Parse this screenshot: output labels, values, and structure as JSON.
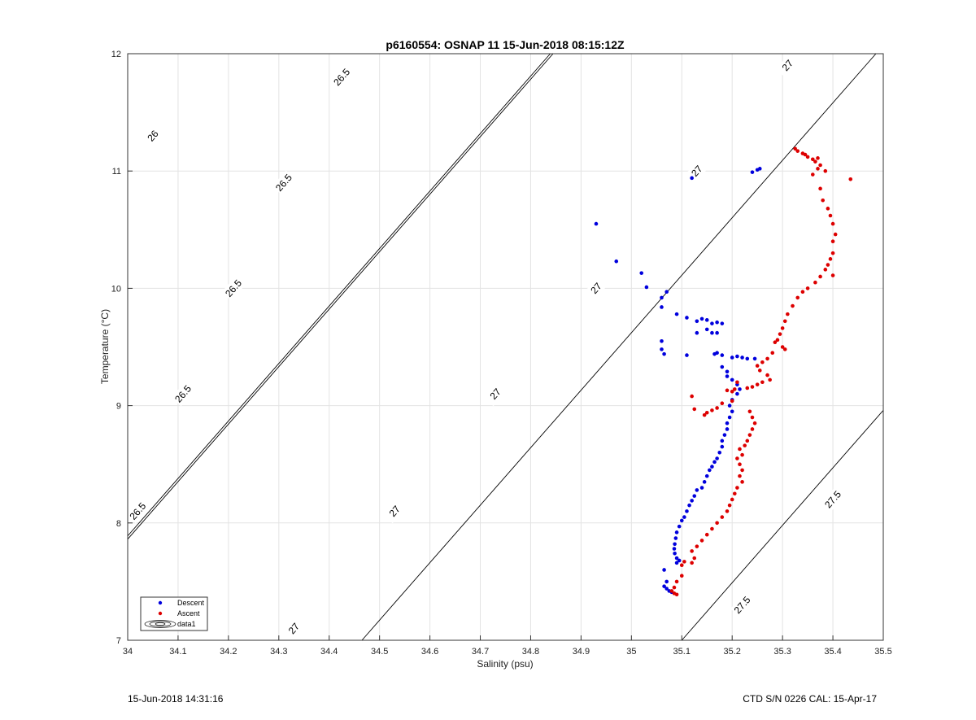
{
  "chart_data": {
    "type": "scatter",
    "title": "p6160554: OSNAP 11 15-Jun-2018 08:15:12Z",
    "xlabel": "Salinity (psu)",
    "ylabel": "Temperature (°C)",
    "xlim": [
      34,
      35.5
    ],
    "ylim": [
      7,
      12
    ],
    "x_ticks": [
      "34",
      "34.1",
      "34.2",
      "34.3",
      "34.4",
      "34.5",
      "34.6",
      "34.7",
      "34.8",
      "34.9",
      "35",
      "35.1",
      "35.2",
      "35.3",
      "35.4",
      "35.5"
    ],
    "y_ticks": [
      "7",
      "8",
      "9",
      "10",
      "11",
      "12"
    ],
    "grid": true,
    "legend_position": "bottom-left",
    "legend": [
      "Descent",
      "Ascent",
      "data1"
    ],
    "colors": {
      "descent": "#0000dd",
      "ascent": "#dd0000",
      "contour": "#000000"
    },
    "contours": [
      {
        "level": "26",
        "labels": [
          {
            "x": 34.05,
            "y": 11.3
          }
        ]
      },
      {
        "level": "26.5",
        "labels": [
          {
            "x": 34.425,
            "y": 11.8
          },
          {
            "x": 34.31,
            "y": 10.9
          },
          {
            "x": 34.21,
            "y": 10.0
          },
          {
            "x": 34.11,
            "y": 9.1
          },
          {
            "x": 34.02,
            "y": 8.1
          }
        ]
      },
      {
        "level": "27",
        "labels": [
          {
            "x": 35.31,
            "y": 11.9
          },
          {
            "x": 35.13,
            "y": 11.0
          },
          {
            "x": 34.93,
            "y": 10.0
          },
          {
            "x": 34.73,
            "y": 9.1
          },
          {
            "x": 34.53,
            "y": 8.1
          },
          {
            "x": 34.33,
            "y": 7.1
          }
        ]
      },
      {
        "level": "27.5",
        "labels": [
          {
            "x": 35.4,
            "y": 8.2
          },
          {
            "x": 35.22,
            "y": 7.3
          }
        ]
      }
    ],
    "series": [
      {
        "name": "Descent",
        "points": [
          [
            34.93,
            10.55
          ],
          [
            34.97,
            10.23
          ],
          [
            35.02,
            10.13
          ],
          [
            35.03,
            10.01
          ],
          [
            35.07,
            9.97
          ],
          [
            35.06,
            9.92
          ],
          [
            35.06,
            9.84
          ],
          [
            35.12,
            10.94
          ],
          [
            35.24,
            10.99
          ],
          [
            35.25,
            11.01
          ],
          [
            35.255,
            11.02
          ],
          [
            35.09,
            9.78
          ],
          [
            35.11,
            9.75
          ],
          [
            35.13,
            9.72
          ],
          [
            35.14,
            9.74
          ],
          [
            35.15,
            9.73
          ],
          [
            35.16,
            9.7
          ],
          [
            35.17,
            9.71
          ],
          [
            35.18,
            9.7
          ],
          [
            35.15,
            9.65
          ],
          [
            35.16,
            9.62
          ],
          [
            35.17,
            9.62
          ],
          [
            35.13,
            9.62
          ],
          [
            35.06,
            9.55
          ],
          [
            35.06,
            9.48
          ],
          [
            35.065,
            9.44
          ],
          [
            35.11,
            9.43
          ],
          [
            35.165,
            9.44
          ],
          [
            35.17,
            9.45
          ],
          [
            35.18,
            9.43
          ],
          [
            35.2,
            9.41
          ],
          [
            35.21,
            9.42
          ],
          [
            35.22,
            9.41
          ],
          [
            35.23,
            9.4
          ],
          [
            35.245,
            9.4
          ],
          [
            35.18,
            9.33
          ],
          [
            35.19,
            9.29
          ],
          [
            35.19,
            9.25
          ],
          [
            35.2,
            9.22
          ],
          [
            35.21,
            9.18
          ],
          [
            35.215,
            9.14
          ],
          [
            35.21,
            9.1
          ],
          [
            35.2,
            9.05
          ],
          [
            35.195,
            9.0
          ],
          [
            35.2,
            8.95
          ],
          [
            35.195,
            8.9
          ],
          [
            35.19,
            8.85
          ],
          [
            35.19,
            8.8
          ],
          [
            35.185,
            8.75
          ],
          [
            35.18,
            8.7
          ],
          [
            35.18,
            8.65
          ],
          [
            35.175,
            8.6
          ],
          [
            35.17,
            8.55
          ],
          [
            35.165,
            8.52
          ],
          [
            35.16,
            8.48
          ],
          [
            35.155,
            8.45
          ],
          [
            35.15,
            8.4
          ],
          [
            35.145,
            8.35
          ],
          [
            35.14,
            8.3
          ],
          [
            35.13,
            8.28
          ],
          [
            35.125,
            8.23
          ],
          [
            35.12,
            8.19
          ],
          [
            35.115,
            8.15
          ],
          [
            35.11,
            8.1
          ],
          [
            35.105,
            8.05
          ],
          [
            35.1,
            8.02
          ],
          [
            35.095,
            7.97
          ],
          [
            35.09,
            7.92
          ],
          [
            35.088,
            7.87
          ],
          [
            35.086,
            7.82
          ],
          [
            35.085,
            7.78
          ],
          [
            35.086,
            7.74
          ],
          [
            35.09,
            7.7
          ],
          [
            35.095,
            7.68
          ],
          [
            35.09,
            7.66
          ],
          [
            35.065,
            7.6
          ],
          [
            35.07,
            7.5
          ],
          [
            35.065,
            7.46
          ],
          [
            35.07,
            7.44
          ],
          [
            35.075,
            7.42
          ],
          [
            35.08,
            7.41
          ]
        ]
      },
      {
        "name": "Ascent",
        "points": [
          [
            35.325,
            11.19
          ],
          [
            35.33,
            11.17
          ],
          [
            35.34,
            11.15
          ],
          [
            35.345,
            11.14
          ],
          [
            35.35,
            11.12
          ],
          [
            35.36,
            11.1
          ],
          [
            35.365,
            11.08
          ],
          [
            35.37,
            11.11
          ],
          [
            35.375,
            11.05
          ],
          [
            35.37,
            11.02
          ],
          [
            35.385,
            11.0
          ],
          [
            35.36,
            10.97
          ],
          [
            35.435,
            10.93
          ],
          [
            35.375,
            10.85
          ],
          [
            35.38,
            10.75
          ],
          [
            35.39,
            10.68
          ],
          [
            35.395,
            10.62
          ],
          [
            35.4,
            10.55
          ],
          [
            35.405,
            10.46
          ],
          [
            35.4,
            10.4
          ],
          [
            35.4,
            10.3
          ],
          [
            35.395,
            10.25
          ],
          [
            35.39,
            10.2
          ],
          [
            35.385,
            10.16
          ],
          [
            35.4,
            10.11
          ],
          [
            35.375,
            10.1
          ],
          [
            35.365,
            10.05
          ],
          [
            35.35,
            10.0
          ],
          [
            35.34,
            9.97
          ],
          [
            35.33,
            9.92
          ],
          [
            35.32,
            9.85
          ],
          [
            35.31,
            9.78
          ],
          [
            35.305,
            9.72
          ],
          [
            35.3,
            9.66
          ],
          [
            35.295,
            9.61
          ],
          [
            35.29,
            9.56
          ],
          [
            35.285,
            9.54
          ],
          [
            35.3,
            9.5
          ],
          [
            35.305,
            9.48
          ],
          [
            35.28,
            9.45
          ],
          [
            35.27,
            9.4
          ],
          [
            35.26,
            9.37
          ],
          [
            35.25,
            9.34
          ],
          [
            35.255,
            9.3
          ],
          [
            35.27,
            9.26
          ],
          [
            35.275,
            9.22
          ],
          [
            35.26,
            9.2
          ],
          [
            35.25,
            9.18
          ],
          [
            35.24,
            9.16
          ],
          [
            35.23,
            9.15
          ],
          [
            35.21,
            9.2
          ],
          [
            35.205,
            9.14
          ],
          [
            35.2,
            9.12
          ],
          [
            35.19,
            9.13
          ],
          [
            35.12,
            9.08
          ],
          [
            35.2,
            9.04
          ],
          [
            35.18,
            9.02
          ],
          [
            35.17,
            8.98
          ],
          [
            35.16,
            8.96
          ],
          [
            35.15,
            8.94
          ],
          [
            35.145,
            8.92
          ],
          [
            35.125,
            8.97
          ],
          [
            35.235,
            8.95
          ],
          [
            35.24,
            8.9
          ],
          [
            35.245,
            8.85
          ],
          [
            35.24,
            8.8
          ],
          [
            35.235,
            8.75
          ],
          [
            35.23,
            8.7
          ],
          [
            35.225,
            8.66
          ],
          [
            35.215,
            8.63
          ],
          [
            35.22,
            8.58
          ],
          [
            35.21,
            8.55
          ],
          [
            35.215,
            8.5
          ],
          [
            35.22,
            8.45
          ],
          [
            35.215,
            8.4
          ],
          [
            35.22,
            8.35
          ],
          [
            35.21,
            8.3
          ],
          [
            35.205,
            8.25
          ],
          [
            35.2,
            8.2
          ],
          [
            35.195,
            8.15
          ],
          [
            35.19,
            8.1
          ],
          [
            35.18,
            8.05
          ],
          [
            35.17,
            8.0
          ],
          [
            35.16,
            7.95
          ],
          [
            35.15,
            7.9
          ],
          [
            35.14,
            7.85
          ],
          [
            35.13,
            7.8
          ],
          [
            35.12,
            7.76
          ],
          [
            35.125,
            7.7
          ],
          [
            35.12,
            7.66
          ],
          [
            35.105,
            7.67
          ],
          [
            35.1,
            7.64
          ],
          [
            35.1,
            7.55
          ],
          [
            35.09,
            7.5
          ],
          [
            35.085,
            7.45
          ],
          [
            35.08,
            7.42
          ],
          [
            35.085,
            7.4
          ],
          [
            35.09,
            7.39
          ]
        ]
      }
    ]
  },
  "footer": {
    "left": "15-Jun-2018 14:31:16",
    "right": "CTD S/N 0226  CAL: 15-Apr-17"
  }
}
